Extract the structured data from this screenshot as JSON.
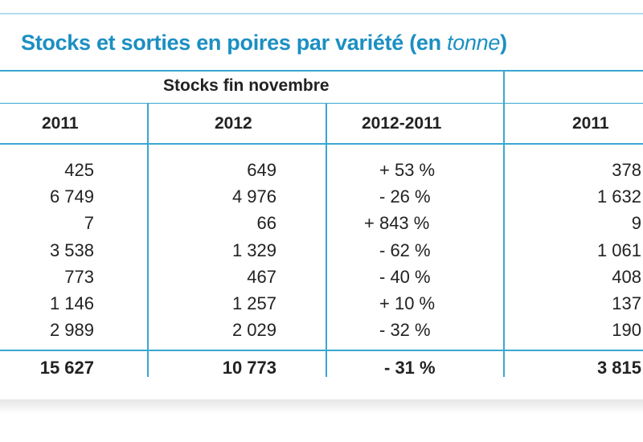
{
  "title": {
    "main": "Stocks et sorties en poires par variété (en ",
    "italic": "tonne",
    "close": ")"
  },
  "group_header": "Stocks fin novembre",
  "columns": [
    "2011",
    "2012",
    "2012-2011",
    "2011"
  ],
  "rows": [
    [
      "425",
      "649",
      "+ 53 %",
      "378"
    ],
    [
      "6 749",
      "4 976",
      "- 26 %",
      "1 632"
    ],
    [
      "7",
      "66",
      "+ 843 %",
      "9"
    ],
    [
      "3 538",
      "1 329",
      "- 62 %",
      "1 061"
    ],
    [
      "773",
      "467",
      "- 40 %",
      "408"
    ],
    [
      "1 146",
      "1 257",
      "+ 10 %",
      "137"
    ],
    [
      "2 989",
      "2 029",
      "- 32 %",
      "190"
    ]
  ],
  "total": [
    "15 627",
    "10 773",
    "- 31 %",
    "3 815"
  ]
}
